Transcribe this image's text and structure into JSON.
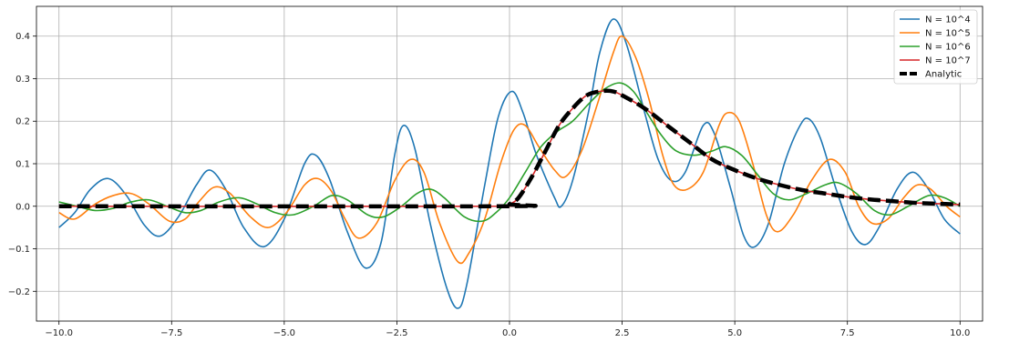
{
  "chart_data": {
    "type": "line",
    "title": "",
    "xlabel": "",
    "ylabel": "",
    "xlim": [
      -10.5,
      10.5
    ],
    "ylim": [
      -0.27,
      0.47
    ],
    "x_ticks": [
      -10.0,
      -7.5,
      -5.0,
      -2.5,
      0.0,
      2.5,
      5.0,
      7.5,
      10.0
    ],
    "x_tick_labels": [
      "−10.0",
      "−7.5",
      "−5.0",
      "−2.5",
      "0.0",
      "2.5",
      "5.0",
      "7.5",
      "10.0"
    ],
    "y_ticks": [
      -0.2,
      -0.1,
      0.0,
      0.1,
      0.2,
      0.3,
      0.4
    ],
    "y_tick_labels": [
      "−0.2",
      "−0.1",
      "0.0",
      "0.1",
      "0.2",
      "0.3",
      "0.4"
    ],
    "grid": true,
    "legend_position": "top-right",
    "series": [
      {
        "name": "N = 10^4",
        "color": "#1f77b4",
        "style": "solid",
        "points": [
          [
            -10,
            -0.05
          ],
          [
            -9.65,
            -0.015
          ],
          [
            -9.3,
            0.04
          ],
          [
            -8.9,
            0.065
          ],
          [
            -8.5,
            0.025
          ],
          [
            -8.1,
            -0.045
          ],
          [
            -7.75,
            -0.07
          ],
          [
            -7.35,
            -0.025
          ],
          [
            -6.95,
            0.05
          ],
          [
            -6.65,
            0.085
          ],
          [
            -6.3,
            0.04
          ],
          [
            -5.9,
            -0.05
          ],
          [
            -5.45,
            -0.095
          ],
          [
            -5.0,
            -0.03
          ],
          [
            -4.55,
            0.1
          ],
          [
            -4.3,
            0.12
          ],
          [
            -4.0,
            0.065
          ],
          [
            -3.6,
            -0.06
          ],
          [
            -3.2,
            -0.145
          ],
          [
            -2.85,
            -0.085
          ],
          [
            -2.55,
            0.12
          ],
          [
            -2.35,
            0.19
          ],
          [
            -2.1,
            0.135
          ],
          [
            -1.75,
            -0.045
          ],
          [
            -1.4,
            -0.19
          ],
          [
            -1.15,
            -0.24
          ],
          [
            -0.95,
            -0.185
          ],
          [
            -0.55,
            0.05
          ],
          [
            -0.25,
            0.21
          ],
          [
            0.05,
            0.27
          ],
          [
            0.3,
            0.22
          ],
          [
            0.6,
            0.12
          ],
          [
            1.0,
            0.02
          ],
          [
            1.15,
            0.0
          ],
          [
            1.4,
            0.06
          ],
          [
            1.75,
            0.22
          ],
          [
            2.0,
            0.36
          ],
          [
            2.3,
            0.44
          ],
          [
            2.6,
            0.38
          ],
          [
            3.0,
            0.22
          ],
          [
            3.3,
            0.11
          ],
          [
            3.6,
            0.06
          ],
          [
            3.9,
            0.08
          ],
          [
            4.3,
            0.19
          ],
          [
            4.55,
            0.17
          ],
          [
            4.9,
            0.045
          ],
          [
            5.2,
            -0.07
          ],
          [
            5.45,
            -0.095
          ],
          [
            5.75,
            -0.04
          ],
          [
            6.1,
            0.1
          ],
          [
            6.45,
            0.19
          ],
          [
            6.65,
            0.205
          ],
          [
            6.9,
            0.16
          ],
          [
            7.25,
            0.04
          ],
          [
            7.6,
            -0.06
          ],
          [
            7.9,
            -0.09
          ],
          [
            8.2,
            -0.05
          ],
          [
            8.6,
            0.04
          ],
          [
            8.95,
            0.08
          ],
          [
            9.3,
            0.04
          ],
          [
            9.65,
            -0.03
          ],
          [
            10.0,
            -0.065
          ]
        ]
      },
      {
        "name": "N = 10^5",
        "color": "#ff7f0e",
        "style": "solid",
        "points": [
          [
            -10,
            -0.015
          ],
          [
            -9.65,
            -0.03
          ],
          [
            -9.2,
            0.005
          ],
          [
            -8.8,
            0.025
          ],
          [
            -8.4,
            0.03
          ],
          [
            -8.0,
            0.005
          ],
          [
            -7.55,
            -0.035
          ],
          [
            -7.2,
            -0.03
          ],
          [
            -6.9,
            0.01
          ],
          [
            -6.55,
            0.045
          ],
          [
            -6.2,
            0.03
          ],
          [
            -5.75,
            -0.025
          ],
          [
            -5.35,
            -0.05
          ],
          [
            -4.95,
            -0.015
          ],
          [
            -4.55,
            0.05
          ],
          [
            -4.25,
            0.065
          ],
          [
            -3.95,
            0.035
          ],
          [
            -3.65,
            -0.03
          ],
          [
            -3.35,
            -0.075
          ],
          [
            -2.95,
            -0.04
          ],
          [
            -2.55,
            0.06
          ],
          [
            -2.2,
            0.11
          ],
          [
            -1.9,
            0.08
          ],
          [
            -1.55,
            -0.04
          ],
          [
            -1.15,
            -0.13
          ],
          [
            -0.9,
            -0.11
          ],
          [
            -0.55,
            -0.03
          ],
          [
            -0.2,
            0.1
          ],
          [
            0.1,
            0.18
          ],
          [
            0.35,
            0.19
          ],
          [
            0.65,
            0.14
          ],
          [
            1.0,
            0.085
          ],
          [
            1.25,
            0.07
          ],
          [
            1.6,
            0.13
          ],
          [
            1.95,
            0.24
          ],
          [
            2.3,
            0.36
          ],
          [
            2.5,
            0.4
          ],
          [
            2.8,
            0.35
          ],
          [
            3.1,
            0.25
          ],
          [
            3.4,
            0.12
          ],
          [
            3.65,
            0.05
          ],
          [
            3.95,
            0.04
          ],
          [
            4.3,
            0.08
          ],
          [
            4.65,
            0.19
          ],
          [
            4.85,
            0.22
          ],
          [
            5.1,
            0.2
          ],
          [
            5.4,
            0.1
          ],
          [
            5.7,
            -0.02
          ],
          [
            5.95,
            -0.06
          ],
          [
            6.3,
            -0.02
          ],
          [
            6.7,
            0.06
          ],
          [
            7.1,
            0.11
          ],
          [
            7.45,
            0.08
          ],
          [
            7.75,
            0.0
          ],
          [
            8.05,
            -0.04
          ],
          [
            8.4,
            -0.03
          ],
          [
            8.75,
            0.02
          ],
          [
            9.05,
            0.05
          ],
          [
            9.35,
            0.04
          ],
          [
            9.7,
            0.0
          ],
          [
            10.0,
            -0.025
          ]
        ]
      },
      {
        "name": "N = 10^6",
        "color": "#2ca02c",
        "style": "solid",
        "points": [
          [
            -10,
            0.01
          ],
          [
            -9.6,
            0.0
          ],
          [
            -9.2,
            -0.01
          ],
          [
            -8.8,
            -0.005
          ],
          [
            -8.4,
            0.01
          ],
          [
            -8.0,
            0.015
          ],
          [
            -7.6,
            0.0
          ],
          [
            -7.2,
            -0.015
          ],
          [
            -6.85,
            -0.01
          ],
          [
            -6.45,
            0.01
          ],
          [
            -6.0,
            0.02
          ],
          [
            -5.6,
            0.005
          ],
          [
            -5.2,
            -0.015
          ],
          [
            -4.8,
            -0.02
          ],
          [
            -4.35,
            0.0
          ],
          [
            -3.95,
            0.025
          ],
          [
            -3.6,
            0.015
          ],
          [
            -3.15,
            -0.02
          ],
          [
            -2.8,
            -0.025
          ],
          [
            -2.4,
            0.0
          ],
          [
            -2.05,
            0.03
          ],
          [
            -1.75,
            0.04
          ],
          [
            -1.45,
            0.02
          ],
          [
            -1.0,
            -0.025
          ],
          [
            -0.6,
            -0.035
          ],
          [
            -0.3,
            -0.015
          ],
          [
            0.0,
            0.02
          ],
          [
            0.35,
            0.08
          ],
          [
            0.7,
            0.14
          ],
          [
            1.05,
            0.175
          ],
          [
            1.4,
            0.2
          ],
          [
            1.75,
            0.24
          ],
          [
            2.1,
            0.275
          ],
          [
            2.45,
            0.29
          ],
          [
            2.75,
            0.27
          ],
          [
            3.05,
            0.22
          ],
          [
            3.35,
            0.17
          ],
          [
            3.7,
            0.13
          ],
          [
            4.1,
            0.12
          ],
          [
            4.5,
            0.13
          ],
          [
            4.8,
            0.14
          ],
          [
            5.15,
            0.12
          ],
          [
            5.5,
            0.075
          ],
          [
            5.85,
            0.03
          ],
          [
            6.2,
            0.015
          ],
          [
            6.6,
            0.03
          ],
          [
            7.0,
            0.05
          ],
          [
            7.3,
            0.055
          ],
          [
            7.7,
            0.03
          ],
          [
            8.1,
            -0.01
          ],
          [
            8.45,
            -0.02
          ],
          [
            8.85,
            0.0
          ],
          [
            9.3,
            0.025
          ],
          [
            9.65,
            0.02
          ],
          [
            10.0,
            0.0
          ]
        ]
      },
      {
        "name": "N = 10^7",
        "color": "#d62728",
        "style": "solid",
        "points": [
          [
            -10,
            0.0
          ],
          [
            -0.2,
            0.0
          ],
          [
            0.0,
            0.005
          ],
          [
            0.2,
            0.02
          ],
          [
            0.5,
            0.07
          ],
          [
            0.8,
            0.13
          ],
          [
            1.1,
            0.19
          ],
          [
            1.4,
            0.23
          ],
          [
            1.7,
            0.26
          ],
          [
            2.0,
            0.27
          ],
          [
            2.3,
            0.27
          ],
          [
            2.6,
            0.255
          ],
          [
            3.0,
            0.23
          ],
          [
            3.5,
            0.19
          ],
          [
            4.0,
            0.15
          ],
          [
            4.5,
            0.11
          ],
          [
            5.0,
            0.085
          ],
          [
            5.5,
            0.065
          ],
          [
            6.0,
            0.05
          ],
          [
            6.5,
            0.038
          ],
          [
            7.0,
            0.03
          ],
          [
            7.5,
            0.022
          ],
          [
            8.0,
            0.016
          ],
          [
            8.5,
            0.012
          ],
          [
            9.0,
            0.008
          ],
          [
            9.5,
            0.006
          ],
          [
            10.0,
            0.004
          ]
        ]
      },
      {
        "name": "Analytic",
        "color": "#000000",
        "style": "dashed",
        "points": [
          [
            -10,
            0.0
          ],
          [
            -0.2,
            0.0
          ],
          [
            0.0,
            0.005
          ],
          [
            0.2,
            0.02
          ],
          [
            0.5,
            0.07
          ],
          [
            0.8,
            0.13
          ],
          [
            1.1,
            0.19
          ],
          [
            1.4,
            0.23
          ],
          [
            1.7,
            0.26
          ],
          [
            2.0,
            0.27
          ],
          [
            2.3,
            0.27
          ],
          [
            2.6,
            0.255
          ],
          [
            3.0,
            0.23
          ],
          [
            3.5,
            0.19
          ],
          [
            4.0,
            0.15
          ],
          [
            4.5,
            0.11
          ],
          [
            5.0,
            0.085
          ],
          [
            5.5,
            0.065
          ],
          [
            6.0,
            0.05
          ],
          [
            6.5,
            0.038
          ],
          [
            7.0,
            0.03
          ],
          [
            7.5,
            0.022
          ],
          [
            8.0,
            0.016
          ],
          [
            8.5,
            0.012
          ],
          [
            9.0,
            0.008
          ],
          [
            9.5,
            0.006
          ],
          [
            10.0,
            0.004
          ]
        ]
      }
    ]
  }
}
